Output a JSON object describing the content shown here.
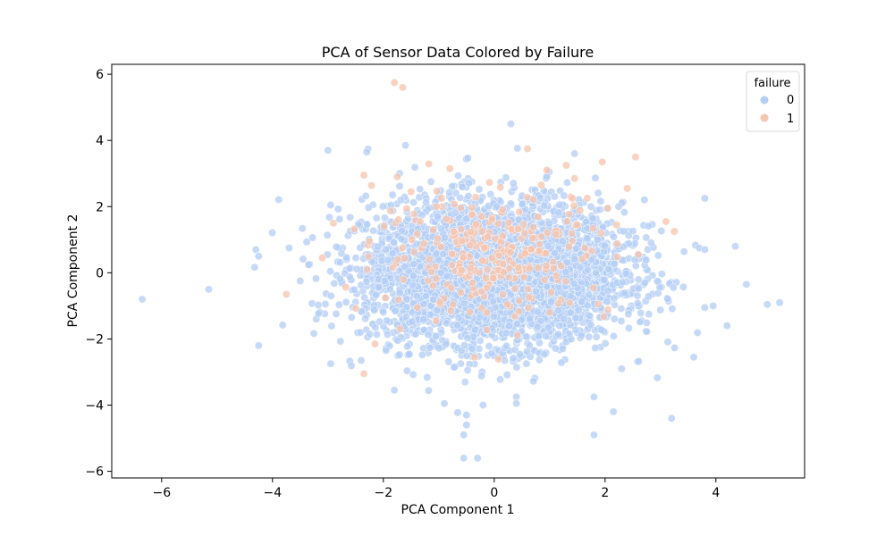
{
  "chart_data": {
    "type": "scatter",
    "title": "PCA of Sensor Data Colored by Failure",
    "xlabel": "PCA Component 1",
    "ylabel": "PCA Component 2",
    "xlim": [
      -6.9,
      5.6
    ],
    "ylim": [
      -6.2,
      6.3
    ],
    "xticks": [
      -6,
      -4,
      -2,
      0,
      2,
      4
    ],
    "yticks": [
      -6,
      -4,
      -2,
      0,
      2,
      4,
      6
    ],
    "xtick_labels": [
      "−6",
      "−4",
      "−2",
      "0",
      "2",
      "4"
    ],
    "ytick_labels": [
      "−6",
      "−4",
      "−2",
      "0",
      "2",
      "4",
      "6"
    ],
    "grid": false,
    "legend": {
      "title": "failure",
      "placement": "top-right",
      "entries": [
        "0",
        "1"
      ]
    },
    "series": [
      {
        "name": "0",
        "color": "#b3cdf6",
        "highlight_points": [
          [
            -6.35,
            -0.8
          ],
          [
            -5.15,
            -0.5
          ],
          [
            -4.3,
            0.7
          ],
          [
            -4.25,
            -2.2
          ],
          [
            -4.25,
            0.5
          ],
          [
            -3.7,
            0.75
          ],
          [
            -3.5,
            -0.25
          ],
          [
            -3.0,
            3.7
          ],
          [
            -2.95,
            2.05
          ],
          [
            -2.95,
            -2.75
          ],
          [
            -2.4,
            -2.65
          ],
          [
            -2.3,
            3.65
          ],
          [
            -1.8,
            -3.55
          ],
          [
            -1.6,
            3.85
          ],
          [
            -0.9,
            -3.95
          ],
          [
            -0.5,
            -4.3
          ],
          [
            -0.5,
            -4.6
          ],
          [
            -0.55,
            -4.9
          ],
          [
            -0.55,
            -5.6
          ],
          [
            -0.3,
            -5.6
          ],
          [
            -0.2,
            -4.0
          ],
          [
            0.3,
            4.5
          ],
          [
            0.4,
            -3.75
          ],
          [
            0.4,
            -3.95
          ],
          [
            1.45,
            3.6
          ],
          [
            1.8,
            -3.75
          ],
          [
            1.8,
            -4.9
          ],
          [
            2.15,
            -4.2
          ],
          [
            3.2,
            -4.4
          ],
          [
            3.6,
            -2.55
          ],
          [
            3.8,
            2.25
          ],
          [
            3.95,
            -1.0
          ],
          [
            4.2,
            -1.6
          ],
          [
            4.35,
            0.8
          ],
          [
            4.55,
            -0.35
          ],
          [
            5.15,
            -0.9
          ],
          [
            3.7,
            0.75
          ],
          [
            3.8,
            0.7
          ],
          [
            2.3,
            -2.9
          ],
          [
            -1.95,
            -2.35
          ]
        ]
      },
      {
        "name": "1",
        "color": "#f5c4ad",
        "highlight_points": [
          [
            -1.8,
            5.75
          ],
          [
            -1.65,
            5.6
          ],
          [
            -3.75,
            -0.65
          ],
          [
            -2.35,
            2.95
          ],
          [
            -2.35,
            -3.05
          ],
          [
            -2.15,
            -2.15
          ],
          [
            -1.75,
            2.9
          ],
          [
            -0.8,
            3.15
          ],
          [
            0.6,
            3.75
          ],
          [
            0.95,
            3.1
          ],
          [
            1.3,
            3.25
          ],
          [
            1.95,
            3.35
          ],
          [
            2.55,
            3.5
          ],
          [
            2.4,
            2.55
          ],
          [
            3.1,
            1.55
          ],
          [
            3.25,
            1.25
          ],
          [
            -3.1,
            0.45
          ],
          [
            -2.9,
            1.5
          ],
          [
            -1.5,
            2.45
          ],
          [
            0.85,
            2.65
          ],
          [
            -0.95,
            2.25
          ],
          [
            1.45,
            2.85
          ],
          [
            2.05,
            1.95
          ],
          [
            -2.25,
            0.95
          ],
          [
            0.45,
            -0.85
          ],
          [
            -1.05,
            -1.45
          ],
          [
            1.5,
            1.45
          ],
          [
            2.6,
            0.55
          ],
          [
            -0.4,
            1.75
          ],
          [
            1.0,
            -1.2
          ]
        ]
      }
    ]
  }
}
